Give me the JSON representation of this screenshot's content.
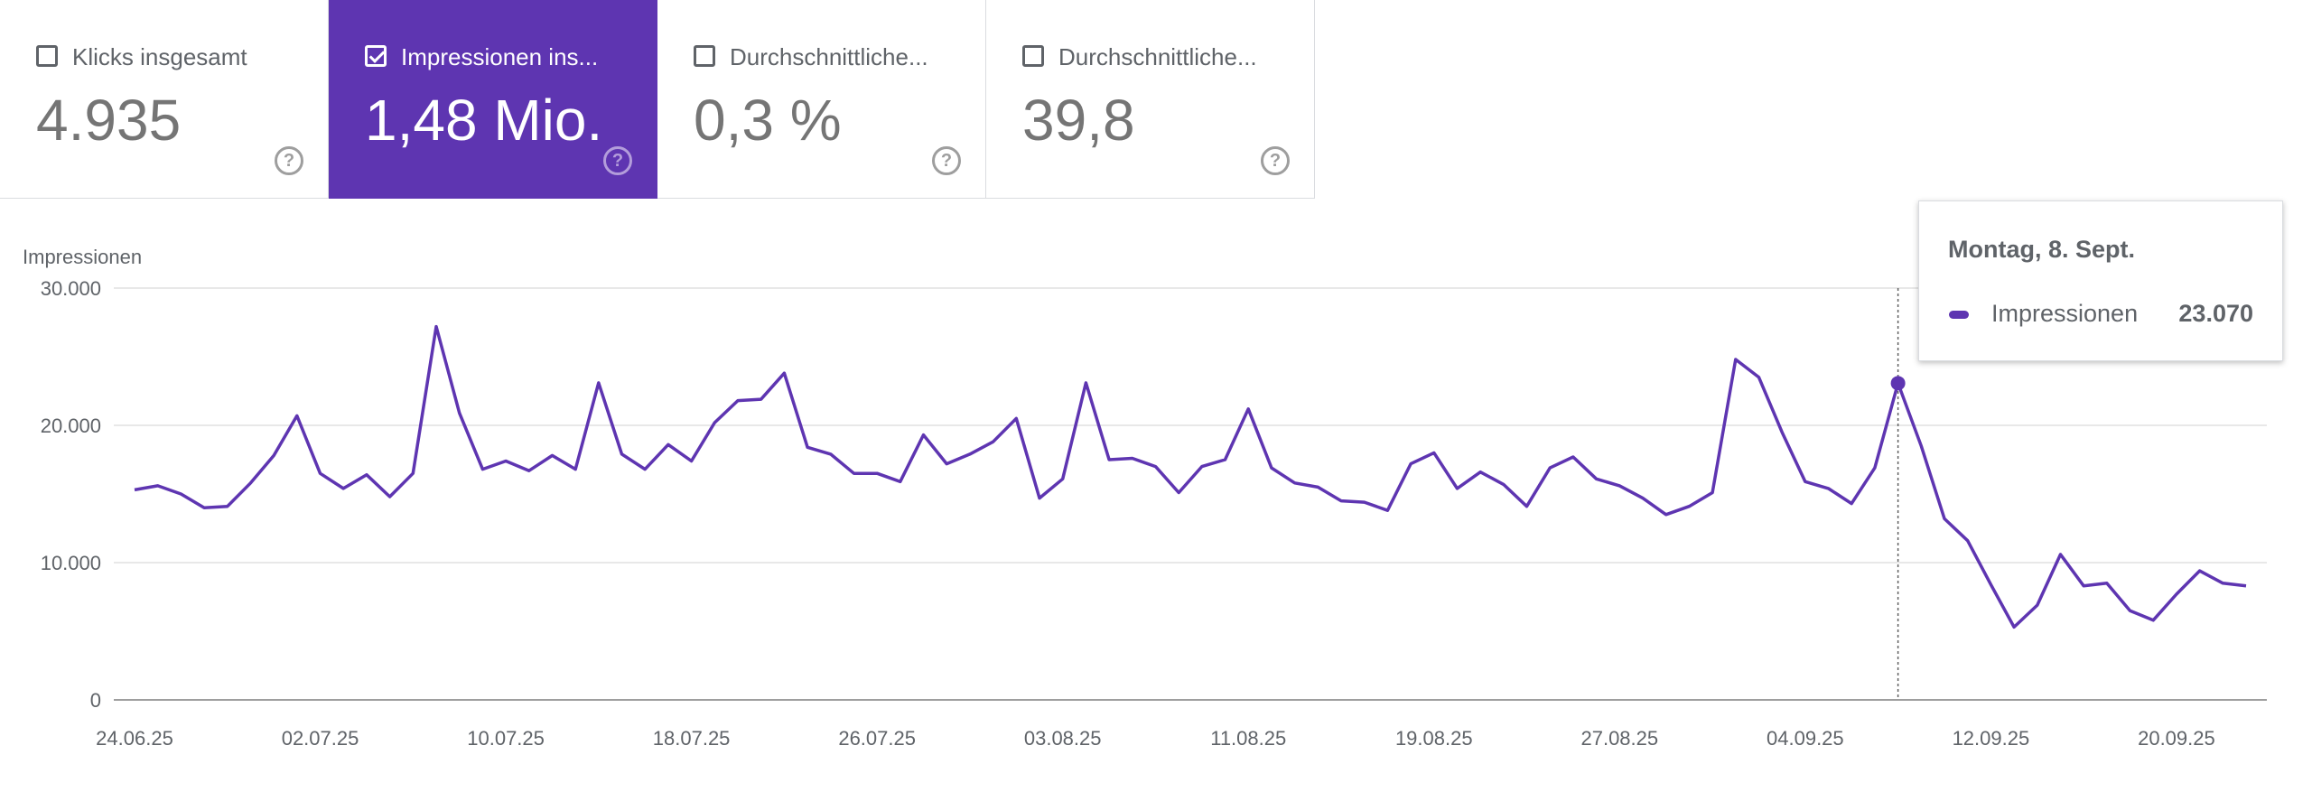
{
  "metrics": [
    {
      "label": "Klicks insgesamt",
      "value": "4.935",
      "checked": false
    },
    {
      "label": "Impressionen ins...",
      "value": "1,48 Mio.",
      "checked": true
    },
    {
      "label": "Durchschnittliche...",
      "value": "0,3 %",
      "checked": false
    },
    {
      "label": "Durchschnittliche...",
      "value": "39,8",
      "checked": false
    }
  ],
  "help_glyph": "?",
  "colors": {
    "accent": "#5e35b1",
    "grid": "#e0e0e0",
    "text": "#5f6368"
  },
  "tooltip": {
    "date": "Montag, 8. Sept.",
    "series": "Impressionen",
    "value": "23.070"
  },
  "chart_data": {
    "type": "line",
    "ylabel": "Impressionen",
    "ylim": [
      0,
      30000
    ],
    "yticks": [
      "0",
      "10.000",
      "20.000",
      "30.000"
    ],
    "xticks": [
      "24.06.25",
      "02.07.25",
      "10.07.25",
      "18.07.25",
      "26.07.25",
      "03.08.25",
      "11.08.25",
      "19.08.25",
      "27.08.25",
      "04.09.25",
      "12.09.25",
      "20.09.25"
    ],
    "x": [
      "24.06.25",
      "25.06.25",
      "26.06.25",
      "27.06.25",
      "28.06.25",
      "29.06.25",
      "30.06.25",
      "01.07.25",
      "02.07.25",
      "03.07.25",
      "04.07.25",
      "05.07.25",
      "06.07.25",
      "07.07.25",
      "08.07.25",
      "09.07.25",
      "10.07.25",
      "11.07.25",
      "12.07.25",
      "13.07.25",
      "14.07.25",
      "15.07.25",
      "16.07.25",
      "17.07.25",
      "18.07.25",
      "19.07.25",
      "20.07.25",
      "21.07.25",
      "22.07.25",
      "23.07.25",
      "24.07.25",
      "25.07.25",
      "26.07.25",
      "27.07.25",
      "28.07.25",
      "29.07.25",
      "30.07.25",
      "31.07.25",
      "01.08.25",
      "02.08.25",
      "03.08.25",
      "04.08.25",
      "05.08.25",
      "06.08.25",
      "07.08.25",
      "08.08.25",
      "09.08.25",
      "10.08.25",
      "11.08.25",
      "12.08.25",
      "13.08.25",
      "14.08.25",
      "15.08.25",
      "16.08.25",
      "17.08.25",
      "18.08.25",
      "19.08.25",
      "20.08.25",
      "21.08.25",
      "22.08.25",
      "23.08.25",
      "24.08.25",
      "25.08.25",
      "26.08.25",
      "27.08.25",
      "28.08.25",
      "29.08.25",
      "30.08.25",
      "31.08.25",
      "01.09.25",
      "02.09.25",
      "03.09.25",
      "04.09.25",
      "05.09.25",
      "06.09.25",
      "07.09.25",
      "08.09.25",
      "09.09.25",
      "10.09.25",
      "11.09.25",
      "12.09.25",
      "13.09.25",
      "14.09.25",
      "15.09.25",
      "16.09.25",
      "17.09.25",
      "18.09.25",
      "19.09.25",
      "20.09.25",
      "21.09.25",
      "22.09.25",
      "23.09.25"
    ],
    "series": [
      {
        "name": "Impressionen",
        "values": [
          15300,
          15600,
          15000,
          14000,
          14100,
          15800,
          17800,
          20700,
          16500,
          15400,
          16400,
          14800,
          16500,
          27200,
          20900,
          16800,
          17400,
          16700,
          17800,
          16800,
          23100,
          17900,
          16800,
          18600,
          17400,
          20200,
          21800,
          21900,
          23800,
          18400,
          17900,
          16500,
          16500,
          15900,
          19300,
          17200,
          17900,
          18800,
          20500,
          14700,
          16100,
          23100,
          17500,
          17600,
          17000,
          15100,
          17000,
          17500,
          21200,
          16900,
          15800,
          15500,
          14500,
          14400,
          13800,
          17200,
          18000,
          15400,
          16600,
          15700,
          14100,
          16900,
          17700,
          16100,
          15600,
          14700,
          13500,
          14100,
          15100,
          24800,
          23500,
          19500,
          15900,
          15400,
          14300,
          16900,
          23070,
          18500,
          13200,
          11600,
          8400,
          5300,
          6900,
          10600,
          8300,
          8500,
          6500,
          5800,
          7700,
          9400,
          8500,
          8300
        ]
      }
    ],
    "highlight": {
      "x": "08.09.25",
      "value": 23070
    },
    "grid": true
  }
}
